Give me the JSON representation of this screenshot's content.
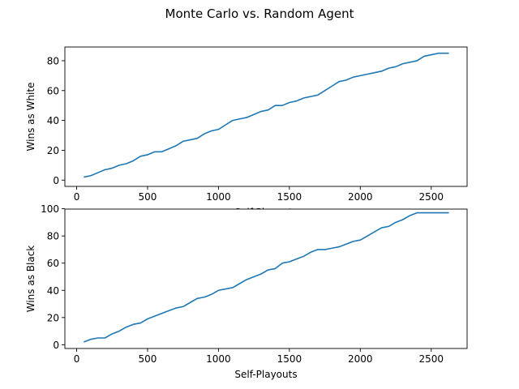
{
  "figure": {
    "suptitle": "Monte Carlo vs. Random Agent"
  },
  "colors": {
    "line": "#1f77b4",
    "axis": "#000000",
    "background": "#ffffff"
  },
  "chart_data": [
    {
      "type": "line",
      "title": "",
      "xlabel": "Self-Playouts",
      "ylabel": "Wins as White",
      "xlim": [
        -83,
        2753
      ],
      "ylim": [
        -4.2,
        89.2
      ],
      "xticks": [
        0,
        500,
        1000,
        1500,
        2000,
        2500
      ],
      "yticks": [
        0,
        20,
        40,
        60,
        80
      ],
      "grid": false,
      "legend": "none",
      "series": [
        {
          "x": [
            50,
            100,
            150,
            200,
            250,
            300,
            350,
            400,
            450,
            500,
            550,
            600,
            650,
            700,
            750,
            800,
            850,
            900,
            950,
            1000,
            1050,
            1100,
            1150,
            1200,
            1250,
            1300,
            1350,
            1400,
            1450,
            1500,
            1550,
            1600,
            1650,
            1700,
            1750,
            1800,
            1850,
            1900,
            1950,
            2000,
            2050,
            2100,
            2150,
            2200,
            2250,
            2300,
            2350,
            2400,
            2450,
            2500,
            2550,
            2600,
            2625
          ],
          "y": [
            2,
            3,
            5,
            7,
            8,
            10,
            11,
            13,
            16,
            17,
            19,
            19,
            21,
            23,
            26,
            27,
            28,
            31,
            33,
            34,
            37,
            40,
            41,
            42,
            44,
            46,
            47,
            50,
            50,
            52,
            53,
            55,
            56,
            57,
            60,
            63,
            66,
            67,
            69,
            70,
            71,
            72,
            73,
            75,
            76,
            78,
            79,
            80,
            83,
            84,
            85,
            85,
            85
          ]
        }
      ]
    },
    {
      "type": "line",
      "title": "",
      "xlabel": "Self-Playouts",
      "ylabel": "Wins as Black",
      "xlim": [
        -83,
        2753
      ],
      "ylim": [
        -2.75,
        99.75
      ],
      "xticks": [
        0,
        500,
        1000,
        1500,
        2000,
        2500
      ],
      "yticks": [
        0,
        20,
        40,
        60,
        80,
        100
      ],
      "grid": false,
      "legend": "none",
      "series": [
        {
          "x": [
            50,
            100,
            150,
            200,
            250,
            300,
            350,
            400,
            450,
            500,
            550,
            600,
            650,
            700,
            750,
            800,
            850,
            900,
            950,
            1000,
            1050,
            1100,
            1150,
            1200,
            1250,
            1300,
            1350,
            1400,
            1450,
            1500,
            1550,
            1600,
            1650,
            1700,
            1750,
            1800,
            1850,
            1900,
            1950,
            2000,
            2050,
            2100,
            2150,
            2200,
            2250,
            2300,
            2350,
            2400,
            2450,
            2500,
            2550,
            2600,
            2625
          ],
          "y": [
            2,
            4,
            5,
            5,
            8,
            10,
            13,
            15,
            16,
            19,
            21,
            23,
            25,
            27,
            28,
            31,
            34,
            35,
            37,
            40,
            41,
            42,
            45,
            48,
            50,
            52,
            55,
            56,
            60,
            61,
            63,
            65,
            68,
            70,
            70,
            71,
            72,
            74,
            76,
            77,
            80,
            83,
            86,
            87,
            90,
            92,
            95,
            97,
            97,
            97,
            97,
            97,
            97
          ]
        }
      ]
    }
  ]
}
